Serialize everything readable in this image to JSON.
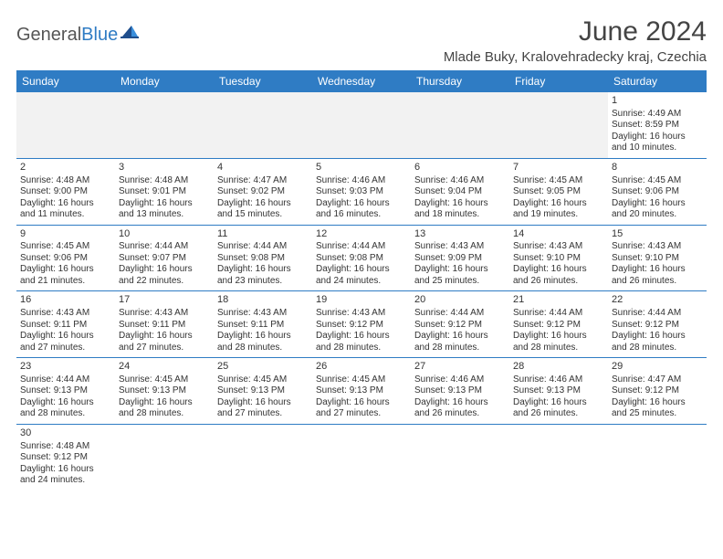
{
  "logo": {
    "general": "General",
    "blue": "Blue"
  },
  "header": {
    "title": "June 2024",
    "location": "Mlade Buky, Kralovehradecky kraj, Czechia"
  },
  "colors": {
    "header_bg": "#2f7cc4",
    "header_text": "#ffffff",
    "border": "#2f7cc4",
    "empty_bg": "#f2f2f2",
    "text": "#333333"
  },
  "columns": [
    "Sunday",
    "Monday",
    "Tuesday",
    "Wednesday",
    "Thursday",
    "Friday",
    "Saturday"
  ],
  "weeks": [
    [
      null,
      null,
      null,
      null,
      null,
      null,
      {
        "n": "1",
        "sunrise": "Sunrise: 4:49 AM",
        "sunset": "Sunset: 8:59 PM",
        "day1": "Daylight: 16 hours",
        "day2": "and 10 minutes."
      }
    ],
    [
      {
        "n": "2",
        "sunrise": "Sunrise: 4:48 AM",
        "sunset": "Sunset: 9:00 PM",
        "day1": "Daylight: 16 hours",
        "day2": "and 11 minutes."
      },
      {
        "n": "3",
        "sunrise": "Sunrise: 4:48 AM",
        "sunset": "Sunset: 9:01 PM",
        "day1": "Daylight: 16 hours",
        "day2": "and 13 minutes."
      },
      {
        "n": "4",
        "sunrise": "Sunrise: 4:47 AM",
        "sunset": "Sunset: 9:02 PM",
        "day1": "Daylight: 16 hours",
        "day2": "and 15 minutes."
      },
      {
        "n": "5",
        "sunrise": "Sunrise: 4:46 AM",
        "sunset": "Sunset: 9:03 PM",
        "day1": "Daylight: 16 hours",
        "day2": "and 16 minutes."
      },
      {
        "n": "6",
        "sunrise": "Sunrise: 4:46 AM",
        "sunset": "Sunset: 9:04 PM",
        "day1": "Daylight: 16 hours",
        "day2": "and 18 minutes."
      },
      {
        "n": "7",
        "sunrise": "Sunrise: 4:45 AM",
        "sunset": "Sunset: 9:05 PM",
        "day1": "Daylight: 16 hours",
        "day2": "and 19 minutes."
      },
      {
        "n": "8",
        "sunrise": "Sunrise: 4:45 AM",
        "sunset": "Sunset: 9:06 PM",
        "day1": "Daylight: 16 hours",
        "day2": "and 20 minutes."
      }
    ],
    [
      {
        "n": "9",
        "sunrise": "Sunrise: 4:45 AM",
        "sunset": "Sunset: 9:06 PM",
        "day1": "Daylight: 16 hours",
        "day2": "and 21 minutes."
      },
      {
        "n": "10",
        "sunrise": "Sunrise: 4:44 AM",
        "sunset": "Sunset: 9:07 PM",
        "day1": "Daylight: 16 hours",
        "day2": "and 22 minutes."
      },
      {
        "n": "11",
        "sunrise": "Sunrise: 4:44 AM",
        "sunset": "Sunset: 9:08 PM",
        "day1": "Daylight: 16 hours",
        "day2": "and 23 minutes."
      },
      {
        "n": "12",
        "sunrise": "Sunrise: 4:44 AM",
        "sunset": "Sunset: 9:08 PM",
        "day1": "Daylight: 16 hours",
        "day2": "and 24 minutes."
      },
      {
        "n": "13",
        "sunrise": "Sunrise: 4:43 AM",
        "sunset": "Sunset: 9:09 PM",
        "day1": "Daylight: 16 hours",
        "day2": "and 25 minutes."
      },
      {
        "n": "14",
        "sunrise": "Sunrise: 4:43 AM",
        "sunset": "Sunset: 9:10 PM",
        "day1": "Daylight: 16 hours",
        "day2": "and 26 minutes."
      },
      {
        "n": "15",
        "sunrise": "Sunrise: 4:43 AM",
        "sunset": "Sunset: 9:10 PM",
        "day1": "Daylight: 16 hours",
        "day2": "and 26 minutes."
      }
    ],
    [
      {
        "n": "16",
        "sunrise": "Sunrise: 4:43 AM",
        "sunset": "Sunset: 9:11 PM",
        "day1": "Daylight: 16 hours",
        "day2": "and 27 minutes."
      },
      {
        "n": "17",
        "sunrise": "Sunrise: 4:43 AM",
        "sunset": "Sunset: 9:11 PM",
        "day1": "Daylight: 16 hours",
        "day2": "and 27 minutes."
      },
      {
        "n": "18",
        "sunrise": "Sunrise: 4:43 AM",
        "sunset": "Sunset: 9:11 PM",
        "day1": "Daylight: 16 hours",
        "day2": "and 28 minutes."
      },
      {
        "n": "19",
        "sunrise": "Sunrise: 4:43 AM",
        "sunset": "Sunset: 9:12 PM",
        "day1": "Daylight: 16 hours",
        "day2": "and 28 minutes."
      },
      {
        "n": "20",
        "sunrise": "Sunrise: 4:44 AM",
        "sunset": "Sunset: 9:12 PM",
        "day1": "Daylight: 16 hours",
        "day2": "and 28 minutes."
      },
      {
        "n": "21",
        "sunrise": "Sunrise: 4:44 AM",
        "sunset": "Sunset: 9:12 PM",
        "day1": "Daylight: 16 hours",
        "day2": "and 28 minutes."
      },
      {
        "n": "22",
        "sunrise": "Sunrise: 4:44 AM",
        "sunset": "Sunset: 9:12 PM",
        "day1": "Daylight: 16 hours",
        "day2": "and 28 minutes."
      }
    ],
    [
      {
        "n": "23",
        "sunrise": "Sunrise: 4:44 AM",
        "sunset": "Sunset: 9:13 PM",
        "day1": "Daylight: 16 hours",
        "day2": "and 28 minutes."
      },
      {
        "n": "24",
        "sunrise": "Sunrise: 4:45 AM",
        "sunset": "Sunset: 9:13 PM",
        "day1": "Daylight: 16 hours",
        "day2": "and 28 minutes."
      },
      {
        "n": "25",
        "sunrise": "Sunrise: 4:45 AM",
        "sunset": "Sunset: 9:13 PM",
        "day1": "Daylight: 16 hours",
        "day2": "and 27 minutes."
      },
      {
        "n": "26",
        "sunrise": "Sunrise: 4:45 AM",
        "sunset": "Sunset: 9:13 PM",
        "day1": "Daylight: 16 hours",
        "day2": "and 27 minutes."
      },
      {
        "n": "27",
        "sunrise": "Sunrise: 4:46 AM",
        "sunset": "Sunset: 9:13 PM",
        "day1": "Daylight: 16 hours",
        "day2": "and 26 minutes."
      },
      {
        "n": "28",
        "sunrise": "Sunrise: 4:46 AM",
        "sunset": "Sunset: 9:13 PM",
        "day1": "Daylight: 16 hours",
        "day2": "and 26 minutes."
      },
      {
        "n": "29",
        "sunrise": "Sunrise: 4:47 AM",
        "sunset": "Sunset: 9:12 PM",
        "day1": "Daylight: 16 hours",
        "day2": "and 25 minutes."
      }
    ],
    [
      {
        "n": "30",
        "sunrise": "Sunrise: 4:48 AM",
        "sunset": "Sunset: 9:12 PM",
        "day1": "Daylight: 16 hours",
        "day2": "and 24 minutes."
      },
      null,
      null,
      null,
      null,
      null,
      null
    ]
  ]
}
